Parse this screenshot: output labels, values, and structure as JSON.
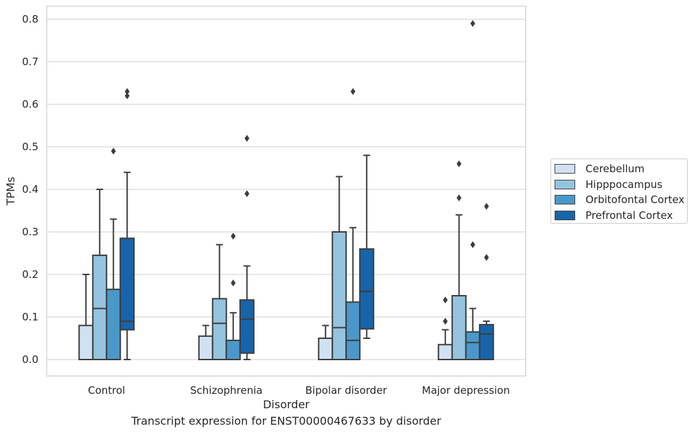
{
  "caption": "Transcript expression for ENST00000467633 by disorder",
  "chart_data": {
    "type": "boxplot",
    "xlabel": "Disorder",
    "ylabel": "TPMs",
    "ylim": [
      -0.04,
      0.83
    ],
    "yticks": [
      "0.0",
      "0.1",
      "0.2",
      "0.3",
      "0.4",
      "0.5",
      "0.6",
      "0.7",
      "0.8"
    ],
    "ytick_values": [
      0,
      0.1,
      0.2,
      0.3,
      0.4,
      0.5,
      0.6,
      0.7,
      0.8
    ],
    "grid": true,
    "legend_position": "right",
    "categories": [
      "Control",
      "Schizophrenia",
      "Bipolar disorder",
      "Major depression"
    ],
    "series": [
      {
        "name": "Cerebellum",
        "color": "#d0e1f2",
        "boxes": [
          {
            "whisker_low": 0,
            "q1": 0,
            "median": 0,
            "q3": 0.08,
            "whisker_high": 0.2,
            "outliers": []
          },
          {
            "whisker_low": 0,
            "q1": 0,
            "median": 0,
            "q3": 0.055,
            "whisker_high": 0.08,
            "outliers": []
          },
          {
            "whisker_low": 0,
            "q1": 0,
            "median": 0,
            "q3": 0.05,
            "whisker_high": 0.08,
            "outliers": []
          },
          {
            "whisker_low": 0,
            "q1": 0,
            "median": 0,
            "q3": 0.035,
            "whisker_high": 0.07,
            "outliers": [
              0.09,
              0.14
            ]
          }
        ]
      },
      {
        "name": "Hipppocampus",
        "color": "#94c4df",
        "boxes": [
          {
            "whisker_low": 0,
            "q1": 0,
            "median": 0.12,
            "q3": 0.245,
            "whisker_high": 0.4,
            "outliers": []
          },
          {
            "whisker_low": 0,
            "q1": 0,
            "median": 0.085,
            "q3": 0.143,
            "whisker_high": 0.27,
            "outliers": []
          },
          {
            "whisker_low": 0,
            "q1": 0,
            "median": 0.075,
            "q3": 0.3,
            "whisker_high": 0.43,
            "outliers": []
          },
          {
            "whisker_low": 0,
            "q1": 0,
            "median": 0,
            "q3": 0.15,
            "whisker_high": 0.34,
            "outliers": [
              0.38,
              0.46
            ]
          }
        ]
      },
      {
        "name": "Orbitofontal Cortex",
        "color": "#4a98c9",
        "boxes": [
          {
            "whisker_low": 0,
            "q1": 0,
            "median": 0,
            "q3": 0.165,
            "whisker_high": 0.33,
            "outliers": [
              0.49
            ]
          },
          {
            "whisker_low": 0,
            "q1": 0,
            "median": 0,
            "q3": 0.045,
            "whisker_high": 0.11,
            "outliers": [
              0.18,
              0.29
            ]
          },
          {
            "whisker_low": 0,
            "q1": 0,
            "median": 0.045,
            "q3": 0.135,
            "whisker_high": 0.31,
            "outliers": [
              0.63
            ]
          },
          {
            "whisker_low": 0,
            "q1": 0,
            "median": 0.04,
            "q3": 0.065,
            "whisker_high": 0.12,
            "outliers": [
              0.27,
              0.79
            ]
          }
        ]
      },
      {
        "name": "Prefrontal Cortex",
        "color": "#1764ab",
        "boxes": [
          {
            "whisker_low": 0,
            "q1": 0.07,
            "median": 0.09,
            "q3": 0.285,
            "whisker_high": 0.44,
            "outliers": [
              0.62,
              0.63
            ]
          },
          {
            "whisker_low": 0,
            "q1": 0.015,
            "median": 0.095,
            "q3": 0.14,
            "whisker_high": 0.22,
            "outliers": [
              0.39,
              0.52
            ]
          },
          {
            "whisker_low": 0.05,
            "q1": 0.072,
            "median": 0.16,
            "q3": 0.26,
            "whisker_high": 0.48,
            "outliers": []
          },
          {
            "whisker_low": 0,
            "q1": 0,
            "median": 0.06,
            "q3": 0.082,
            "whisker_high": 0.09,
            "outliers": [
              0.24,
              0.36
            ]
          }
        ]
      }
    ]
  }
}
